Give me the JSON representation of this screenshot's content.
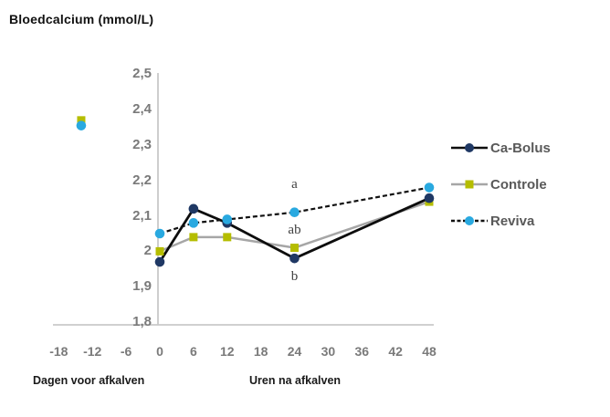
{
  "chart_data": {
    "type": "line",
    "title": "Bloedcalcium (mmol/L)",
    "xlabel_left": "Dagen voor afkalven",
    "xlabel_right": "Uren na afkalven",
    "ylim": [
      1.8,
      2.5
    ],
    "grid": false,
    "legend_position": "right",
    "y_ticks": [
      {
        "label": "2,5",
        "value": 2.5
      },
      {
        "label": "2,4",
        "value": 2.4
      },
      {
        "label": "2,3",
        "value": 2.3
      },
      {
        "label": "2,2",
        "value": 2.2
      },
      {
        "label": "2,1",
        "value": 2.1
      },
      {
        "label": "2",
        "value": 2.0
      },
      {
        "label": "1,9",
        "value": 1.9
      },
      {
        "label": "1,8",
        "value": 1.8
      }
    ],
    "x_ticks": [
      {
        "label": "-18",
        "value": -18
      },
      {
        "label": "-12",
        "value": -12
      },
      {
        "label": "-6",
        "value": -6
      },
      {
        "label": "0",
        "value": 0
      },
      {
        "label": "6",
        "value": 6
      },
      {
        "label": "12",
        "value": 12
      },
      {
        "label": "18",
        "value": 18
      },
      {
        "label": "24",
        "value": 24
      },
      {
        "label": "30",
        "value": 30
      },
      {
        "label": "36",
        "value": 36
      },
      {
        "label": "42",
        "value": 42
      },
      {
        "label": "48",
        "value": 48
      }
    ],
    "series": [
      {
        "name": "Ca-Bolus",
        "slug": "ca-bolus",
        "line_color": "#0d0d0d",
        "line_style": "solid",
        "line_width": 2.8,
        "marker": "circle",
        "marker_color": "#1f3864",
        "x": [
          0,
          6,
          12,
          24,
          48
        ],
        "y": [
          1.97,
          2.12,
          2.08,
          1.98,
          2.15
        ]
      },
      {
        "name": "Controle",
        "slug": "controle",
        "line_color": "#a6a6a6",
        "line_style": "solid",
        "line_width": 2.5,
        "marker": "square",
        "marker_color": "#b5bd00",
        "x": [
          0,
          6,
          12,
          24,
          48
        ],
        "y": [
          2.0,
          2.04,
          2.04,
          2.01,
          2.14
        ]
      },
      {
        "name": "Reviva",
        "slug": "reviva",
        "line_color": "#111111",
        "line_style": "dashed",
        "line_width": 2.2,
        "marker": "circle",
        "marker_color": "#29a9e0",
        "x": [
          0,
          6,
          12,
          24,
          48
        ],
        "y": [
          2.05,
          2.08,
          2.09,
          2.11,
          2.18
        ]
      }
    ],
    "prepartum_points": [
      {
        "series": "Controle",
        "marker": "square",
        "marker_color": "#b5bd00",
        "x": -14,
        "y": 2.37
      },
      {
        "series": "Reviva",
        "marker": "circle",
        "marker_color": "#29a9e0",
        "x": -14,
        "y": 2.355
      }
    ],
    "annotations": [
      {
        "text": "a",
        "x": 24,
        "y": 2.19
      },
      {
        "text": "ab",
        "x": 24,
        "y": 2.06
      },
      {
        "text": "b",
        "x": 24,
        "y": 1.93
      }
    ],
    "colors": {
      "axis_line": "#c9c9c9",
      "tick_text": "#7a7a7a",
      "title_text": "#111111",
      "legend_text": "#595959",
      "annotation_text": "#3f3f3f"
    }
  }
}
